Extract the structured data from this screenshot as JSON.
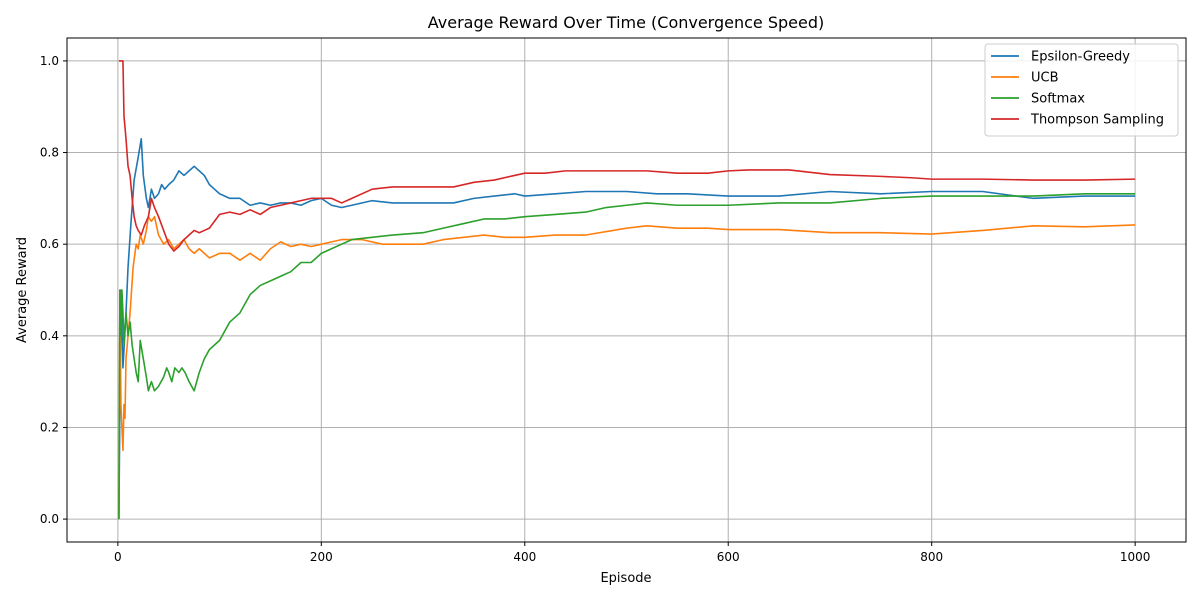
{
  "chart_data": {
    "type": "line",
    "title": "Average Reward Over Time (Convergence Speed)",
    "xlabel": "Episode",
    "ylabel": "Average Reward",
    "xlim": [
      -50,
      1050
    ],
    "ylim": [
      -0.05,
      1.05
    ],
    "xticks": [
      0,
      200,
      400,
      600,
      800,
      1000
    ],
    "yticks": [
      0.0,
      0.2,
      0.4,
      0.6,
      0.8,
      1.0
    ],
    "xtick_labels": [
      "0",
      "200",
      "400",
      "600",
      "800",
      "1000"
    ],
    "ytick_labels": [
      "0.0",
      "0.2",
      "0.4",
      "0.6",
      "0.8",
      "1.0"
    ],
    "grid": true,
    "legend_position": "top-right",
    "series": [
      {
        "name": "Epsilon-Greedy",
        "color": "#1f77b4",
        "points": [
          [
            1,
            0.0
          ],
          [
            3,
            0.5
          ],
          [
            5,
            0.33
          ],
          [
            8,
            0.45
          ],
          [
            10,
            0.55
          ],
          [
            13,
            0.65
          ],
          [
            16,
            0.74
          ],
          [
            20,
            0.79
          ],
          [
            23,
            0.83
          ],
          [
            25,
            0.75
          ],
          [
            28,
            0.7
          ],
          [
            30,
            0.68
          ],
          [
            33,
            0.72
          ],
          [
            36,
            0.7
          ],
          [
            40,
            0.71
          ],
          [
            43,
            0.73
          ],
          [
            46,
            0.72
          ],
          [
            50,
            0.73
          ],
          [
            55,
            0.74
          ],
          [
            60,
            0.76
          ],
          [
            65,
            0.75
          ],
          [
            70,
            0.76
          ],
          [
            75,
            0.77
          ],
          [
            80,
            0.76
          ],
          [
            85,
            0.75
          ],
          [
            90,
            0.73
          ],
          [
            95,
            0.72
          ],
          [
            100,
            0.71
          ],
          [
            110,
            0.7
          ],
          [
            120,
            0.7
          ],
          [
            130,
            0.685
          ],
          [
            140,
            0.69
          ],
          [
            150,
            0.685
          ],
          [
            160,
            0.69
          ],
          [
            170,
            0.69
          ],
          [
            180,
            0.685
          ],
          [
            190,
            0.695
          ],
          [
            200,
            0.7
          ],
          [
            210,
            0.685
          ],
          [
            220,
            0.68
          ],
          [
            230,
            0.685
          ],
          [
            250,
            0.695
          ],
          [
            270,
            0.69
          ],
          [
            300,
            0.69
          ],
          [
            330,
            0.69
          ],
          [
            350,
            0.7
          ],
          [
            370,
            0.705
          ],
          [
            390,
            0.71
          ],
          [
            400,
            0.705
          ],
          [
            430,
            0.71
          ],
          [
            460,
            0.715
          ],
          [
            500,
            0.715
          ],
          [
            530,
            0.71
          ],
          [
            560,
            0.71
          ],
          [
            600,
            0.705
          ],
          [
            650,
            0.705
          ],
          [
            700,
            0.715
          ],
          [
            750,
            0.71
          ],
          [
            800,
            0.715
          ],
          [
            850,
            0.715
          ],
          [
            900,
            0.7
          ],
          [
            950,
            0.705
          ],
          [
            1000,
            0.705
          ]
        ]
      },
      {
        "name": "UCB",
        "color": "#ff7f0e",
        "points": [
          [
            1,
            0.0
          ],
          [
            2,
            0.5
          ],
          [
            3,
            0.25
          ],
          [
            4,
            0.2
          ],
          [
            5,
            0.15
          ],
          [
            6,
            0.25
          ],
          [
            7,
            0.22
          ],
          [
            8,
            0.35
          ],
          [
            10,
            0.4
          ],
          [
            12,
            0.45
          ],
          [
            15,
            0.55
          ],
          [
            18,
            0.6
          ],
          [
            20,
            0.59
          ],
          [
            22,
            0.62
          ],
          [
            25,
            0.6
          ],
          [
            28,
            0.63
          ],
          [
            30,
            0.66
          ],
          [
            33,
            0.65
          ],
          [
            36,
            0.66
          ],
          [
            40,
            0.62
          ],
          [
            45,
            0.6
          ],
          [
            50,
            0.61
          ],
          [
            55,
            0.59
          ],
          [
            60,
            0.6
          ],
          [
            65,
            0.61
          ],
          [
            70,
            0.59
          ],
          [
            75,
            0.58
          ],
          [
            80,
            0.59
          ],
          [
            85,
            0.58
          ],
          [
            90,
            0.57
          ],
          [
            95,
            0.575
          ],
          [
            100,
            0.58
          ],
          [
            110,
            0.58
          ],
          [
            120,
            0.565
          ],
          [
            130,
            0.58
          ],
          [
            140,
            0.565
          ],
          [
            150,
            0.59
          ],
          [
            160,
            0.605
          ],
          [
            170,
            0.595
          ],
          [
            180,
            0.6
          ],
          [
            190,
            0.595
          ],
          [
            200,
            0.6
          ],
          [
            210,
            0.605
          ],
          [
            220,
            0.61
          ],
          [
            240,
            0.61
          ],
          [
            260,
            0.6
          ],
          [
            280,
            0.6
          ],
          [
            300,
            0.6
          ],
          [
            320,
            0.61
          ],
          [
            340,
            0.615
          ],
          [
            360,
            0.62
          ],
          [
            380,
            0.615
          ],
          [
            400,
            0.615
          ],
          [
            430,
            0.62
          ],
          [
            460,
            0.62
          ],
          [
            500,
            0.635
          ],
          [
            520,
            0.64
          ],
          [
            550,
            0.635
          ],
          [
            580,
            0.635
          ],
          [
            600,
            0.632
          ],
          [
            650,
            0.632
          ],
          [
            700,
            0.625
          ],
          [
            750,
            0.625
          ],
          [
            800,
            0.622
          ],
          [
            850,
            0.63
          ],
          [
            900,
            0.64
          ],
          [
            950,
            0.638
          ],
          [
            1000,
            0.642
          ]
        ]
      },
      {
        "name": "Softmax",
        "color": "#2ca02c",
        "points": [
          [
            1,
            0.0
          ],
          [
            2,
            0.5
          ],
          [
            3,
            0.4
          ],
          [
            4,
            0.5
          ],
          [
            5,
            0.45
          ],
          [
            6,
            0.38
          ],
          [
            7,
            0.42
          ],
          [
            8,
            0.45
          ],
          [
            10,
            0.4
          ],
          [
            12,
            0.43
          ],
          [
            14,
            0.38
          ],
          [
            16,
            0.35
          ],
          [
            18,
            0.32
          ],
          [
            20,
            0.3
          ],
          [
            22,
            0.39
          ],
          [
            25,
            0.35
          ],
          [
            28,
            0.31
          ],
          [
            30,
            0.28
          ],
          [
            33,
            0.3
          ],
          [
            36,
            0.28
          ],
          [
            40,
            0.29
          ],
          [
            45,
            0.31
          ],
          [
            48,
            0.33
          ],
          [
            50,
            0.32
          ],
          [
            53,
            0.3
          ],
          [
            56,
            0.33
          ],
          [
            60,
            0.32
          ],
          [
            63,
            0.33
          ],
          [
            66,
            0.32
          ],
          [
            70,
            0.3
          ],
          [
            75,
            0.28
          ],
          [
            80,
            0.32
          ],
          [
            85,
            0.35
          ],
          [
            90,
            0.37
          ],
          [
            95,
            0.38
          ],
          [
            100,
            0.39
          ],
          [
            110,
            0.43
          ],
          [
            120,
            0.45
          ],
          [
            130,
            0.49
          ],
          [
            140,
            0.51
          ],
          [
            150,
            0.52
          ],
          [
            160,
            0.53
          ],
          [
            170,
            0.54
          ],
          [
            180,
            0.56
          ],
          [
            190,
            0.56
          ],
          [
            200,
            0.58
          ],
          [
            210,
            0.59
          ],
          [
            220,
            0.6
          ],
          [
            230,
            0.61
          ],
          [
            250,
            0.615
          ],
          [
            270,
            0.62
          ],
          [
            300,
            0.625
          ],
          [
            320,
            0.635
          ],
          [
            340,
            0.645
          ],
          [
            360,
            0.655
          ],
          [
            380,
            0.655
          ],
          [
            400,
            0.66
          ],
          [
            430,
            0.665
          ],
          [
            460,
            0.67
          ],
          [
            480,
            0.68
          ],
          [
            500,
            0.685
          ],
          [
            520,
            0.69
          ],
          [
            550,
            0.685
          ],
          [
            580,
            0.685
          ],
          [
            600,
            0.685
          ],
          [
            650,
            0.69
          ],
          [
            700,
            0.69
          ],
          [
            750,
            0.7
          ],
          [
            800,
            0.705
          ],
          [
            850,
            0.705
          ],
          [
            900,
            0.705
          ],
          [
            950,
            0.71
          ],
          [
            1000,
            0.71
          ]
        ]
      },
      {
        "name": "Thompson Sampling",
        "color": "#d62728",
        "points": [
          [
            1,
            1.0
          ],
          [
            3,
            1.0
          ],
          [
            5,
            1.0
          ],
          [
            6,
            0.88
          ],
          [
            8,
            0.83
          ],
          [
            10,
            0.77
          ],
          [
            12,
            0.75
          ],
          [
            14,
            0.7
          ],
          [
            16,
            0.66
          ],
          [
            18,
            0.64
          ],
          [
            20,
            0.63
          ],
          [
            23,
            0.62
          ],
          [
            26,
            0.64
          ],
          [
            30,
            0.66
          ],
          [
            33,
            0.7
          ],
          [
            36,
            0.68
          ],
          [
            40,
            0.66
          ],
          [
            45,
            0.63
          ],
          [
            50,
            0.6
          ],
          [
            55,
            0.585
          ],
          [
            60,
            0.595
          ],
          [
            65,
            0.61
          ],
          [
            70,
            0.62
          ],
          [
            75,
            0.63
          ],
          [
            80,
            0.625
          ],
          [
            85,
            0.63
          ],
          [
            90,
            0.635
          ],
          [
            95,
            0.65
          ],
          [
            100,
            0.665
          ],
          [
            110,
            0.67
          ],
          [
            120,
            0.665
          ],
          [
            130,
            0.675
          ],
          [
            140,
            0.665
          ],
          [
            150,
            0.68
          ],
          [
            160,
            0.685
          ],
          [
            170,
            0.69
          ],
          [
            180,
            0.695
          ],
          [
            190,
            0.7
          ],
          [
            200,
            0.7
          ],
          [
            210,
            0.7
          ],
          [
            220,
            0.69
          ],
          [
            230,
            0.7
          ],
          [
            250,
            0.72
          ],
          [
            270,
            0.725
          ],
          [
            300,
            0.725
          ],
          [
            330,
            0.725
          ],
          [
            350,
            0.735
          ],
          [
            370,
            0.74
          ],
          [
            390,
            0.75
          ],
          [
            400,
            0.755
          ],
          [
            420,
            0.755
          ],
          [
            440,
            0.76
          ],
          [
            460,
            0.76
          ],
          [
            500,
            0.76
          ],
          [
            520,
            0.76
          ],
          [
            550,
            0.755
          ],
          [
            580,
            0.755
          ],
          [
            600,
            0.76
          ],
          [
            620,
            0.762
          ],
          [
            660,
            0.762
          ],
          [
            700,
            0.752
          ],
          [
            750,
            0.748
          ],
          [
            780,
            0.745
          ],
          [
            800,
            0.742
          ],
          [
            850,
            0.742
          ],
          [
            900,
            0.74
          ],
          [
            950,
            0.74
          ],
          [
            1000,
            0.742
          ]
        ]
      }
    ]
  }
}
